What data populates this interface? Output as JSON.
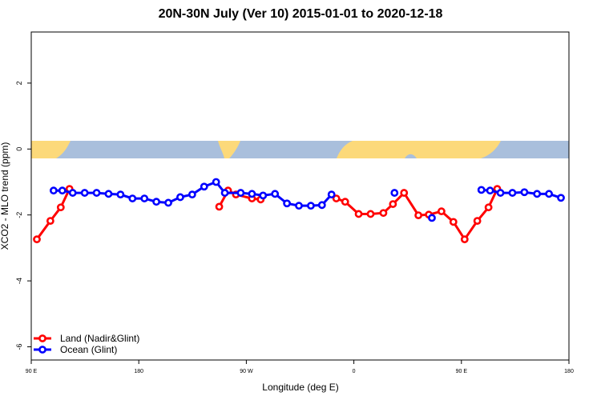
{
  "chart_data": {
    "type": "line",
    "title": "20N-30N July (Ver 10)   2015-01-01 to 2020-12-18",
    "x_label": "Longitude (deg E)",
    "y_label": "XCO2 - MLO trend (ppm)",
    "xlim": [
      90,
      540
    ],
    "ylim": [
      -6.4,
      3.55
    ],
    "xticks": [
      {
        "value": 90,
        "label": "90 E"
      },
      180,
      {
        "value": 270,
        "label": "90 W"
      },
      {
        "value": 360,
        "label": "0"
      },
      {
        "value": 450,
        "label": "90 E"
      },
      {
        "value": 540,
        "label": "180"
      }
    ],
    "yticks": [
      2,
      0,
      -2,
      -4,
      -6
    ],
    "legend": "bottom-left",
    "series": [
      {
        "name": "Land (Nadir&Glint)",
        "color": "#ff0000",
        "x": [
          94.7,
          106,
          114.7,
          122,
          null,
          247.3,
          254.7,
          261.3,
          274.7,
          282,
          null,
          345.3,
          352.7,
          364,
          374,
          384.7,
          392.7,
          402,
          414,
          422.7,
          433.3,
          443.3,
          452.7,
          463.3,
          472.7,
          480
        ],
        "values": [
          -2.74,
          -2.18,
          -1.77,
          -1.21,
          null,
          -1.75,
          -1.26,
          -1.38,
          -1.5,
          -1.53,
          null,
          -1.5,
          -1.6,
          -1.97,
          -1.97,
          -1.94,
          -1.67,
          -1.33,
          -2.01,
          -1.99,
          -1.89,
          -2.21,
          -2.74,
          -2.18,
          -1.77,
          -1.21
        ]
      },
      {
        "name": "Ocean (Glint)",
        "color": "#0000ff",
        "x": [
          108.7,
          116,
          124.7,
          134.7,
          144.7,
          154.7,
          164.7,
          174.7,
          184.7,
          194.7,
          204.7,
          214.7,
          224.7,
          234.7,
          244.7,
          252,
          265.3,
          274.7,
          284,
          294,
          304,
          314,
          324,
          333.3,
          341.3,
          null,
          394,
          null,
          425.3,
          null,
          466.7,
          474,
          482.7,
          492.7,
          502.7,
          513.3,
          523.3,
          533.3
        ],
        "values": [
          -1.26,
          -1.26,
          -1.33,
          -1.33,
          -1.33,
          -1.36,
          -1.38,
          -1.5,
          -1.5,
          -1.6,
          -1.63,
          -1.46,
          -1.38,
          -1.14,
          -1.0,
          -1.33,
          -1.33,
          -1.36,
          -1.41,
          -1.36,
          -1.65,
          -1.72,
          -1.72,
          -1.7,
          -1.38,
          null,
          -1.33,
          null,
          -2.09,
          null,
          -1.24,
          -1.26,
          -1.33,
          -1.33,
          -1.31,
          -1.36,
          -1.36,
          -1.48
        ]
      }
    ]
  }
}
